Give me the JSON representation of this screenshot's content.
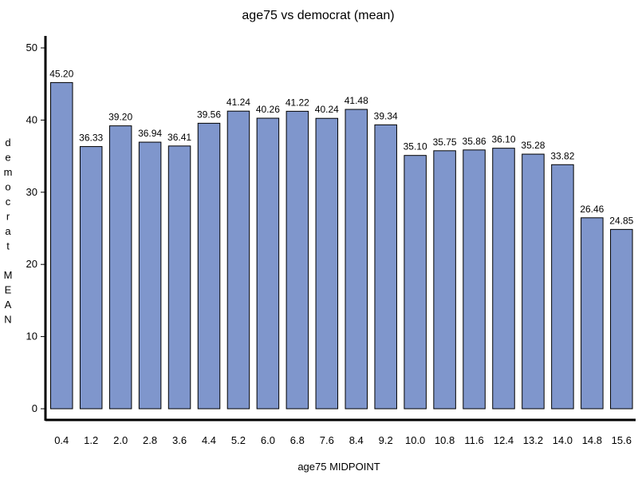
{
  "chart_data": {
    "type": "bar",
    "title": "age75 vs democrat (mean)",
    "xlabel": "age75 MIDPOINT",
    "ylabel": "democrat MEAN",
    "ylim": [
      0,
      50
    ],
    "yticks": [
      0,
      10,
      20,
      30,
      40,
      50
    ],
    "grid": false,
    "categories": [
      "0.4",
      "1.2",
      "2.0",
      "2.8",
      "3.6",
      "4.4",
      "5.2",
      "6.0",
      "6.8",
      "7.6",
      "8.4",
      "9.2",
      "10.0",
      "10.8",
      "11.6",
      "12.4",
      "13.2",
      "14.0",
      "14.8",
      "15.6"
    ],
    "values": [
      45.2,
      36.33,
      39.2,
      36.94,
      36.41,
      39.56,
      41.24,
      40.26,
      41.22,
      40.24,
      41.48,
      39.34,
      35.1,
      35.75,
      35.86,
      36.1,
      35.28,
      33.82,
      26.46,
      24.85
    ],
    "value_labels": [
      "45.20",
      "36.33",
      "39.20",
      "36.94",
      "36.41",
      "39.56",
      "41.24",
      "40.26",
      "41.22",
      "40.24",
      "41.48",
      "39.34",
      "35.10",
      "35.75",
      "35.86",
      "36.10",
      "35.28",
      "33.82",
      "26.46",
      "24.85"
    ],
    "bar_color": "#7f96cc",
    "bar_edge_color": "#000000"
  }
}
